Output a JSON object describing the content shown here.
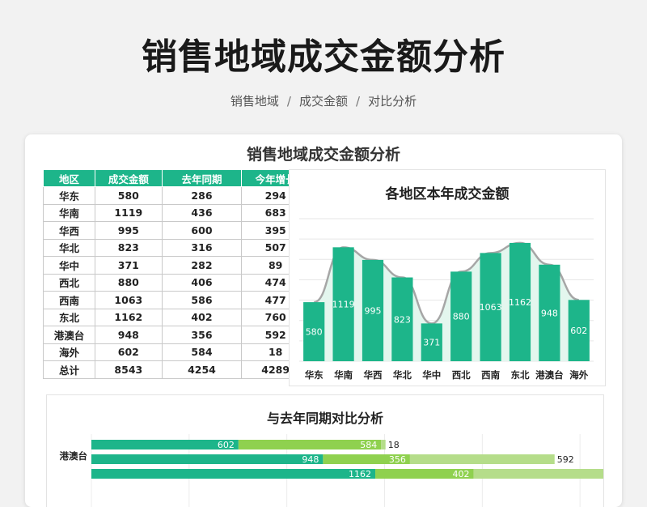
{
  "header": {
    "title": "销售地域成交金额分析",
    "breadcrumb": [
      "销售地域",
      "成交金额",
      "对比分析"
    ]
  },
  "sheet": {
    "title": "销售地域成交金额分析",
    "table": {
      "columns": [
        "地区",
        "成交金额",
        "去年同期",
        "今年增长"
      ],
      "rows": [
        [
          "华东",
          "580",
          "286",
          "294"
        ],
        [
          "华南",
          "1119",
          "436",
          "683"
        ],
        [
          "华西",
          "995",
          "600",
          "395"
        ],
        [
          "华北",
          "823",
          "316",
          "507"
        ],
        [
          "华中",
          "371",
          "282",
          "89"
        ],
        [
          "西北",
          "880",
          "406",
          "474"
        ],
        [
          "西南",
          "1063",
          "586",
          "477"
        ],
        [
          "东北",
          "1162",
          "402",
          "760"
        ],
        [
          "港澳台",
          "948",
          "356",
          "592"
        ],
        [
          "海外",
          "602",
          "584",
          "18"
        ],
        [
          "总计",
          "8543",
          "4254",
          "4289"
        ]
      ]
    }
  },
  "chart_data": [
    {
      "type": "bar",
      "title": "各地区本年成交金额",
      "categories": [
        "华东",
        "华南",
        "华西",
        "华北",
        "华中",
        "西北",
        "西南",
        "东北",
        "港澳台",
        "海外"
      ],
      "values": [
        580,
        1119,
        995,
        823,
        371,
        880,
        1063,
        1162,
        948,
        602
      ],
      "ylim": [
        0,
        1400
      ],
      "grid": true,
      "bar_color": "#1db58a",
      "line_color": "#a6a6a6",
      "area_color": "#e3f6ee"
    },
    {
      "type": "bar",
      "orientation": "horizontal",
      "stacked": true,
      "title": "与去年同期对比分析",
      "visible_rows": [
        {
          "category": "",
          "values": [
            602,
            584,
            18
          ]
        },
        {
          "category": "港澳台",
          "values": [
            948,
            356,
            592
          ]
        },
        {
          "category": "",
          "values": [
            1162,
            402,
            760
          ]
        }
      ],
      "series_colors": [
        "#1db58a",
        "#8fd14f",
        "#b5dd8a"
      ],
      "xlim": [
        0,
        2400
      ]
    }
  ]
}
